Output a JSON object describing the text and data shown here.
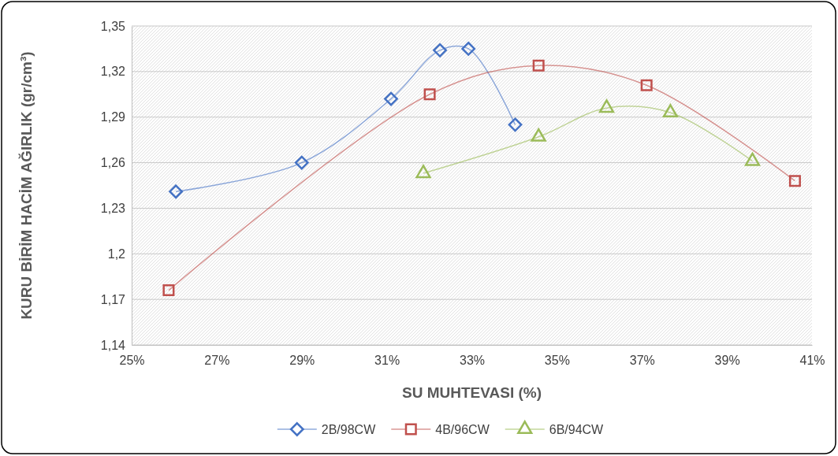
{
  "chart_data": {
    "type": "line",
    "xlabel": "SU MUHTEVASI (%)",
    "ylabel": "KURU BİRİM HACİM AĞIRLIK (gr/cm³)",
    "xlim": [
      25,
      41
    ],
    "xticks": [
      {
        "value": 25,
        "label": "25%"
      },
      {
        "value": 27,
        "label": "27%"
      },
      {
        "value": 29,
        "label": "29%"
      },
      {
        "value": 31,
        "label": "31%"
      },
      {
        "value": 33,
        "label": "33%"
      },
      {
        "value": 35,
        "label": "35%"
      },
      {
        "value": 37,
        "label": "37%"
      },
      {
        "value": 39,
        "label": "39%"
      },
      {
        "value": 41,
        "label": "41%"
      }
    ],
    "ylim": [
      1.14,
      1.35
    ],
    "yticks": [
      {
        "value": 1.14,
        "label": "1,14"
      },
      {
        "value": 1.17,
        "label": "1,17"
      },
      {
        "value": 1.2,
        "label": "1,2"
      },
      {
        "value": 1.23,
        "label": "1,23"
      },
      {
        "value": 1.26,
        "label": "1,26"
      },
      {
        "value": 1.29,
        "label": "1,29"
      },
      {
        "value": 1.32,
        "label": "1,32"
      },
      {
        "value": 1.35,
        "label": "1,35"
      }
    ],
    "grid": "y",
    "legend": "bottom",
    "series": [
      {
        "name": "2B/98CW",
        "color": "#4472c4",
        "marker": "diamond",
        "x": [
          26.04,
          29.0,
          31.1,
          32.25,
          32.92,
          34.02
        ],
        "values": [
          1.241,
          1.26,
          1.302,
          1.334,
          1.335,
          1.285
        ]
      },
      {
        "name": "4B/96CW",
        "color": "#c0504d",
        "marker": "square",
        "x": [
          25.87,
          32.01,
          34.57,
          37.11,
          40.6
        ],
        "values": [
          1.176,
          1.305,
          1.324,
          1.311,
          1.248
        ]
      },
      {
        "name": "6B/94CW",
        "color": "#9bbb59",
        "marker": "triangle",
        "x": [
          31.86,
          34.57,
          36.17,
          37.67,
          39.6
        ],
        "values": [
          1.253,
          1.277,
          1.296,
          1.293,
          1.261
        ]
      }
    ]
  }
}
